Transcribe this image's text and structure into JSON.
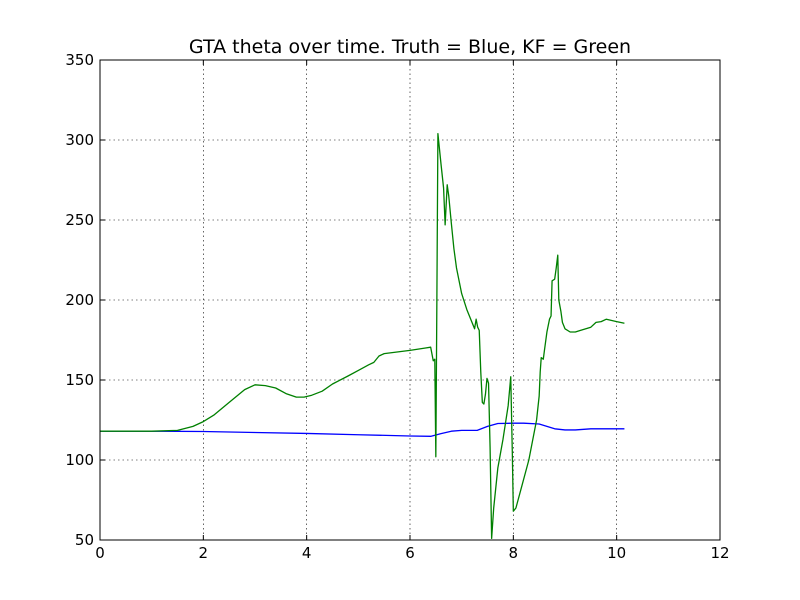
{
  "chart_data": {
    "type": "line",
    "title": "GTA theta over time. Truth = Blue, KF = Green",
    "xlabel": "",
    "ylabel": "",
    "xlim": [
      0,
      12
    ],
    "ylim": [
      50,
      350
    ],
    "x_ticks": [
      0,
      2,
      4,
      6,
      8,
      10,
      12
    ],
    "y_ticks": [
      50,
      100,
      150,
      200,
      250,
      300,
      350
    ],
    "grid": true,
    "series": [
      {
        "color": "#0000ff",
        "points": [
          [
            0,
            118
          ],
          [
            1,
            118
          ],
          [
            2,
            117.8
          ],
          [
            3,
            117.2
          ],
          [
            4,
            116.6
          ],
          [
            5,
            115.8
          ],
          [
            6,
            115
          ],
          [
            6.4,
            114.8
          ],
          [
            6.6,
            116.5
          ],
          [
            6.8,
            118
          ],
          [
            7,
            118.5
          ],
          [
            7.3,
            118.5
          ],
          [
            7.5,
            121
          ],
          [
            7.7,
            122.8
          ],
          [
            8,
            123
          ],
          [
            8.2,
            123
          ],
          [
            8.5,
            122.5
          ],
          [
            8.8,
            119.5
          ],
          [
            9,
            118.8
          ],
          [
            9.2,
            118.8
          ],
          [
            9.5,
            119.5
          ],
          [
            10,
            119.5
          ],
          [
            10.15,
            119.5
          ]
        ]
      },
      {
        "color": "#008000",
        "points": [
          [
            0,
            118
          ],
          [
            1,
            118
          ],
          [
            1.5,
            118.5
          ],
          [
            1.8,
            121
          ],
          [
            2,
            124
          ],
          [
            2.2,
            128
          ],
          [
            2.5,
            136
          ],
          [
            2.8,
            144
          ],
          [
            3,
            147
          ],
          [
            3.2,
            146.5
          ],
          [
            3.4,
            145
          ],
          [
            3.6,
            141.5
          ],
          [
            3.8,
            139.3
          ],
          [
            3.95,
            139.3
          ],
          [
            4.1,
            140.5
          ],
          [
            4.3,
            143
          ],
          [
            4.5,
            147.5
          ],
          [
            4.8,
            152.5
          ],
          [
            5,
            156
          ],
          [
            5.2,
            159.5
          ],
          [
            5.3,
            161
          ],
          [
            5.4,
            165
          ],
          [
            5.5,
            166.5
          ],
          [
            6,
            168.5
          ],
          [
            6.3,
            170
          ],
          [
            6.4,
            170.5
          ],
          [
            6.45,
            162
          ],
          [
            6.48,
            163
          ],
          [
            6.5,
            102
          ],
          [
            6.52,
            200
          ],
          [
            6.54,
            304
          ],
          [
            6.6,
            285
          ],
          [
            6.65,
            270
          ],
          [
            6.68,
            247
          ],
          [
            6.72,
            272
          ],
          [
            6.75,
            265
          ],
          [
            6.8,
            248
          ],
          [
            6.85,
            232
          ],
          [
            6.9,
            220
          ],
          [
            7,
            204
          ],
          [
            7.1,
            194
          ],
          [
            7.2,
            186
          ],
          [
            7.25,
            182
          ],
          [
            7.28,
            188
          ],
          [
            7.31,
            183
          ],
          [
            7.34,
            181
          ],
          [
            7.37,
            155
          ],
          [
            7.4,
            136
          ],
          [
            7.43,
            135
          ],
          [
            7.46,
            141
          ],
          [
            7.49,
            151
          ],
          [
            7.52,
            148
          ],
          [
            7.55,
            108
          ],
          [
            7.58,
            51
          ],
          [
            7.62,
            70
          ],
          [
            7.7,
            95
          ],
          [
            7.8,
            113
          ],
          [
            7.9,
            134
          ],
          [
            7.95,
            152
          ],
          [
            7.98,
            105
          ],
          [
            8,
            68
          ],
          [
            8.05,
            70
          ],
          [
            8.15,
            82
          ],
          [
            8.3,
            100
          ],
          [
            8.45,
            125
          ],
          [
            8.5,
            140
          ],
          [
            8.52,
            155
          ],
          [
            8.54,
            164
          ],
          [
            8.58,
            163
          ],
          [
            8.6,
            168
          ],
          [
            8.65,
            180
          ],
          [
            8.7,
            188
          ],
          [
            8.73,
            190
          ],
          [
            8.75,
            212
          ],
          [
            8.8,
            213
          ],
          [
            8.83,
            220
          ],
          [
            8.86,
            228
          ],
          [
            8.88,
            200
          ],
          [
            8.92,
            193
          ],
          [
            8.95,
            186
          ],
          [
            9,
            182
          ],
          [
            9.1,
            180
          ],
          [
            9.2,
            180
          ],
          [
            9.3,
            181
          ],
          [
            9.5,
            183
          ],
          [
            9.6,
            186
          ],
          [
            9.7,
            186.5
          ],
          [
            9.8,
            188
          ],
          [
            10,
            186.5
          ],
          [
            10.15,
            185.5
          ]
        ]
      }
    ]
  }
}
